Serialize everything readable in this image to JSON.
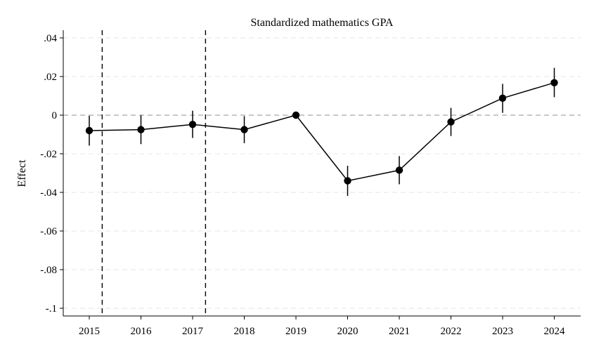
{
  "chart_data": {
    "type": "line",
    "title": "Standardized mathematics GPA",
    "xlabel": "",
    "ylabel": "Effect",
    "categories": [
      "2015",
      "2016",
      "2017",
      "2018",
      "2019",
      "2020",
      "2021",
      "2022",
      "2023",
      "2024"
    ],
    "y_ticks": [
      0.04,
      0.02,
      0,
      -0.02,
      -0.04,
      -0.06,
      -0.08,
      -0.1
    ],
    "y_tick_labels": [
      ".04",
      ".02",
      "0",
      "-.02",
      "-.04",
      "-.06",
      "-.08",
      "-.1"
    ],
    "ylim": [
      -0.104,
      0.0445
    ],
    "series": [
      {
        "values": [
          -0.008,
          -0.0075,
          -0.0048,
          -0.0075,
          0.0,
          -0.034,
          -0.0285,
          -0.0035,
          0.0088,
          0.0168
        ],
        "ci_low": [
          -0.0158,
          -0.015,
          -0.0118,
          -0.0145,
          0.0,
          -0.0418,
          -0.0358,
          -0.0108,
          0.0012,
          0.0093
        ],
        "ci_high": [
          -0.0003,
          0.0,
          0.0023,
          -0.0005,
          0.0,
          -0.0262,
          -0.0212,
          0.0038,
          0.0162,
          0.0245
        ]
      }
    ],
    "reference_line_y": 0,
    "vertical_dashed_lines_x": [
      2015.25,
      2017.25
    ],
    "grid": true,
    "colors": {
      "series": "#000000",
      "grid": "#e6e6e6",
      "reference": "#a6a6a6"
    }
  }
}
